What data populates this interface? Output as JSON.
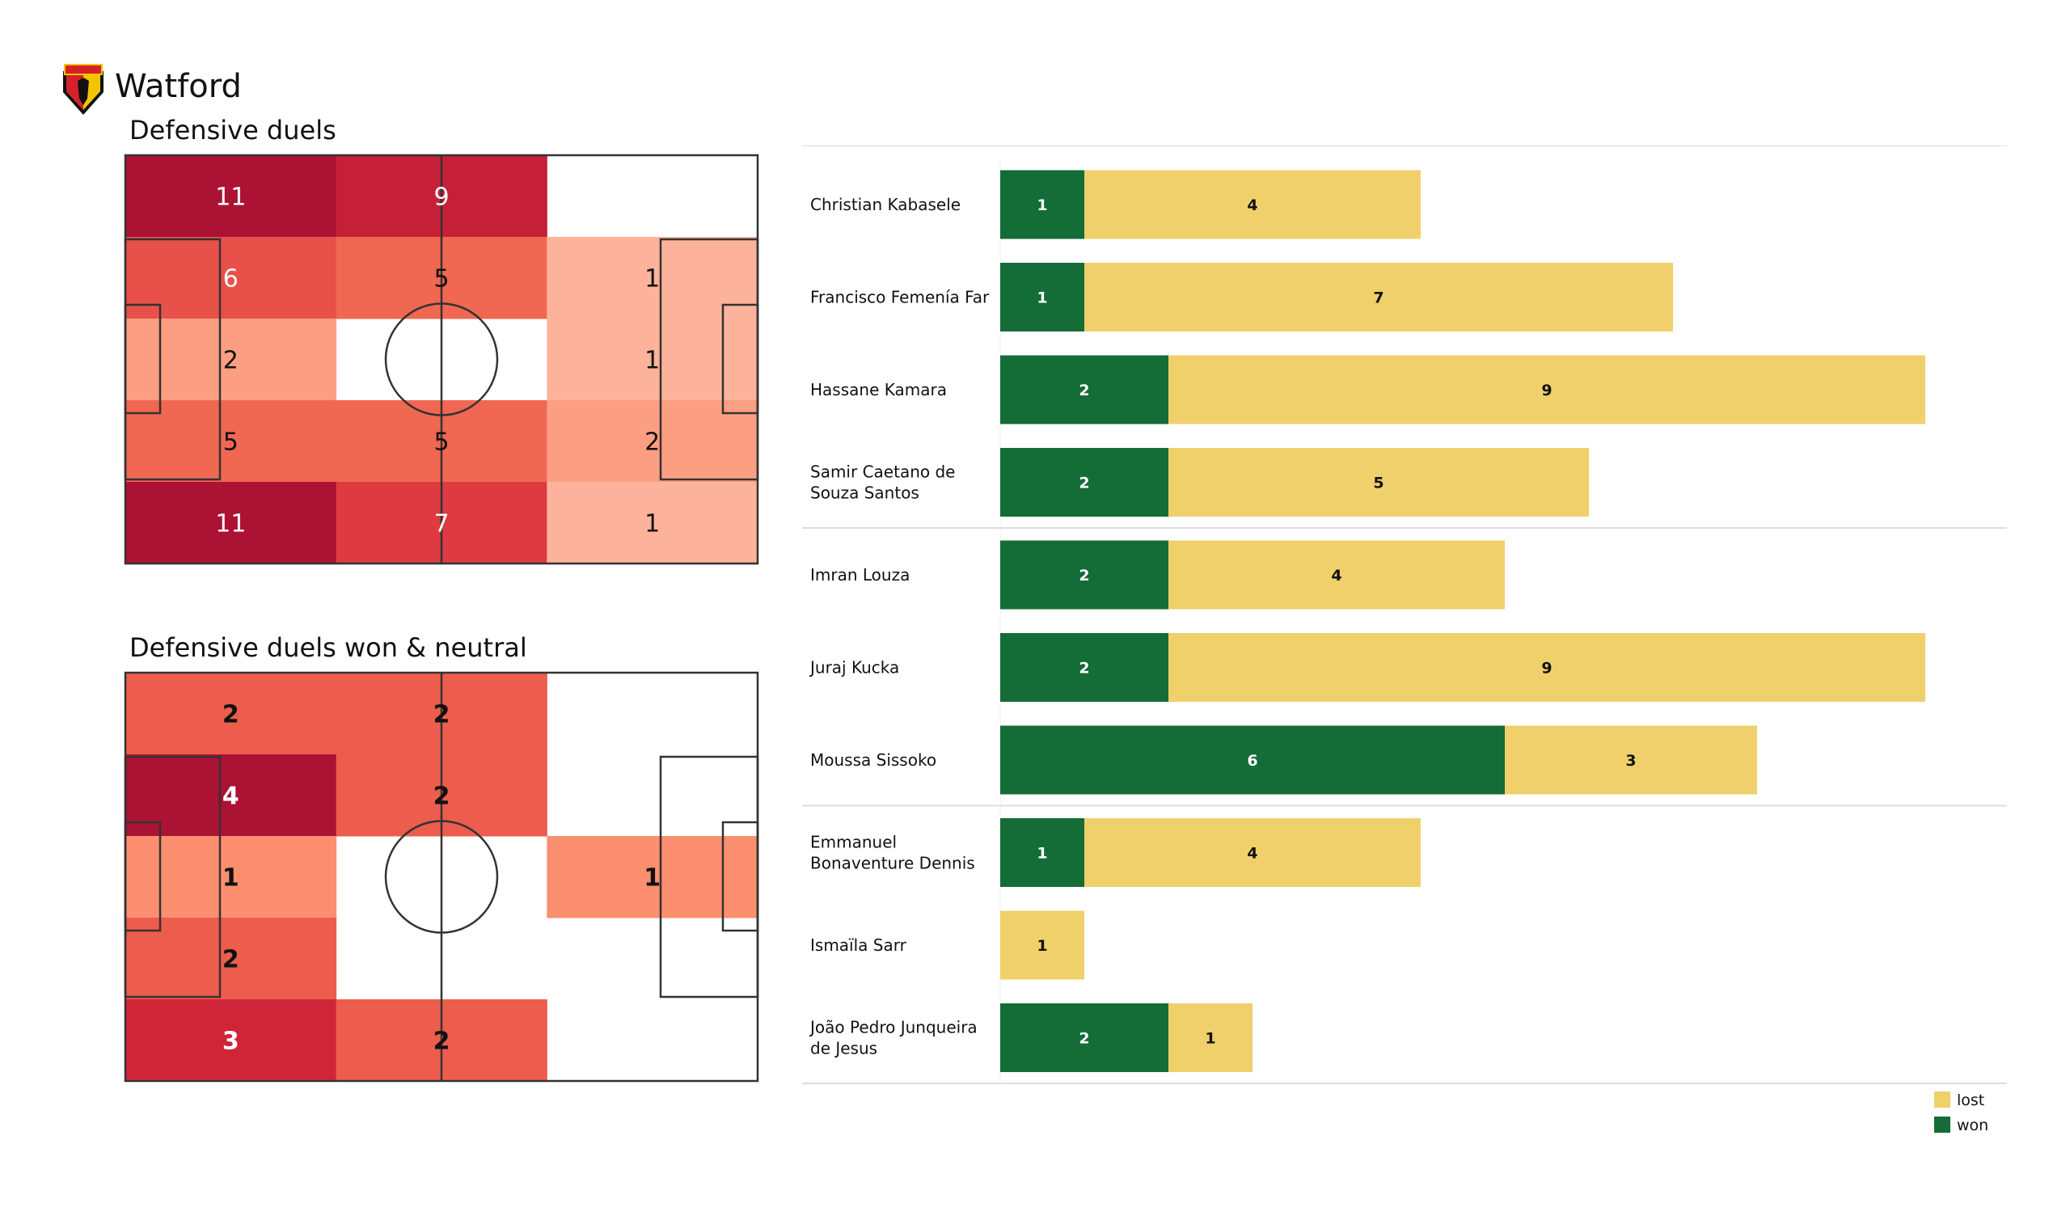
{
  "header": {
    "team": "Watford",
    "logo_text": "WATFORD"
  },
  "colors": {
    "won": "#146c36",
    "lost": "#f0d06a",
    "line": "#333333",
    "separator": "#dddddd"
  },
  "chart_data": [
    {
      "type": "heatmap",
      "title": "Defensive duels",
      "bold": false,
      "rows": [
        [
          11,
          9,
          null
        ],
        [
          6,
          5,
          1
        ],
        [
          2,
          null,
          1
        ],
        [
          5,
          5,
          2
        ],
        [
          11,
          7,
          1
        ]
      ],
      "max": 11
    },
    {
      "type": "heatmap",
      "title": "Defensive duels won & neutral",
      "bold": true,
      "rows": [
        [
          2,
          2,
          null
        ],
        [
          4,
          2,
          null
        ],
        [
          1,
          null,
          1
        ],
        [
          2,
          null,
          null
        ],
        [
          3,
          2,
          null
        ]
      ],
      "max": 4
    },
    {
      "type": "bar",
      "stacked": true,
      "orientation": "horizontal",
      "legend": {
        "position": "bottom-right",
        "entries": [
          "lost",
          "won"
        ]
      },
      "groups_separated_after": [
        3,
        6
      ],
      "players": [
        {
          "name": [
            "Christian Kabasele"
          ],
          "won": 1,
          "lost": 4
        },
        {
          "name": [
            "Francisco Femenía Far"
          ],
          "won": 1,
          "lost": 7
        },
        {
          "name": [
            "Hassane Kamara"
          ],
          "won": 2,
          "lost": 9
        },
        {
          "name": [
            "Samir Caetano de",
            "Souza Santos"
          ],
          "won": 2,
          "lost": 5
        },
        {
          "name": [
            "Imran Louza"
          ],
          "won": 2,
          "lost": 4
        },
        {
          "name": [
            "Juraj Kucka"
          ],
          "won": 2,
          "lost": 9
        },
        {
          "name": [
            "Moussa Sissoko"
          ],
          "won": 6,
          "lost": 3
        },
        {
          "name": [
            "Emmanuel",
            "Bonaventure Dennis"
          ],
          "won": 1,
          "lost": 4
        },
        {
          "name": [
            "Ismaïla Sarr"
          ],
          "won": 0,
          "lost": 1
        },
        {
          "name": [
            "João Pedro Junqueira",
            "de Jesus"
          ],
          "won": 2,
          "lost": 1
        }
      ]
    }
  ]
}
